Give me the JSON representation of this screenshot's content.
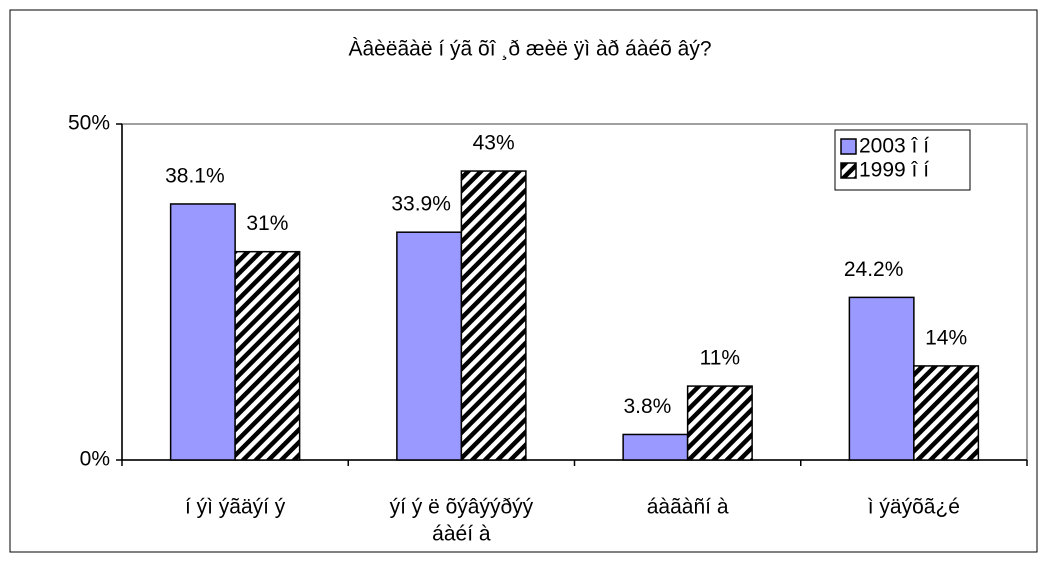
{
  "chart_data": {
    "type": "bar",
    "title": "Àâèëãàë í ýã õî ¸ð æèë ÿì àð áàéõ âý?",
    "categories": [
      [
        "í ýì ýãäýí ý"
      ],
      [
        "ýí ý ë õýâýýðýý",
        "áàéí à"
      ],
      [
        "áàãàñí à"
      ],
      [
        "ì ýäýõã¿é"
      ]
    ],
    "series": [
      {
        "name": "2003 î í",
        "color": "#9999ff",
        "pattern": "solid",
        "values": [
          38.1,
          33.9,
          3.8,
          24.2
        ],
        "value_labels": [
          "38.1%",
          "33.9%",
          "3.8%",
          "24.2%"
        ]
      },
      {
        "name": "1999 î í",
        "color": "#000000",
        "pattern": "diagonal-stripes",
        "values": [
          31,
          43,
          11,
          14
        ],
        "value_labels": [
          "31%",
          "43%",
          "11%",
          "14%"
        ]
      }
    ],
    "ylim": [
      0,
      50
    ],
    "yticks": [
      {
        "value": 0,
        "label": "0%"
      },
      {
        "value": 50,
        "label": "50%"
      }
    ],
    "grid": false,
    "legend": "top-right"
  }
}
